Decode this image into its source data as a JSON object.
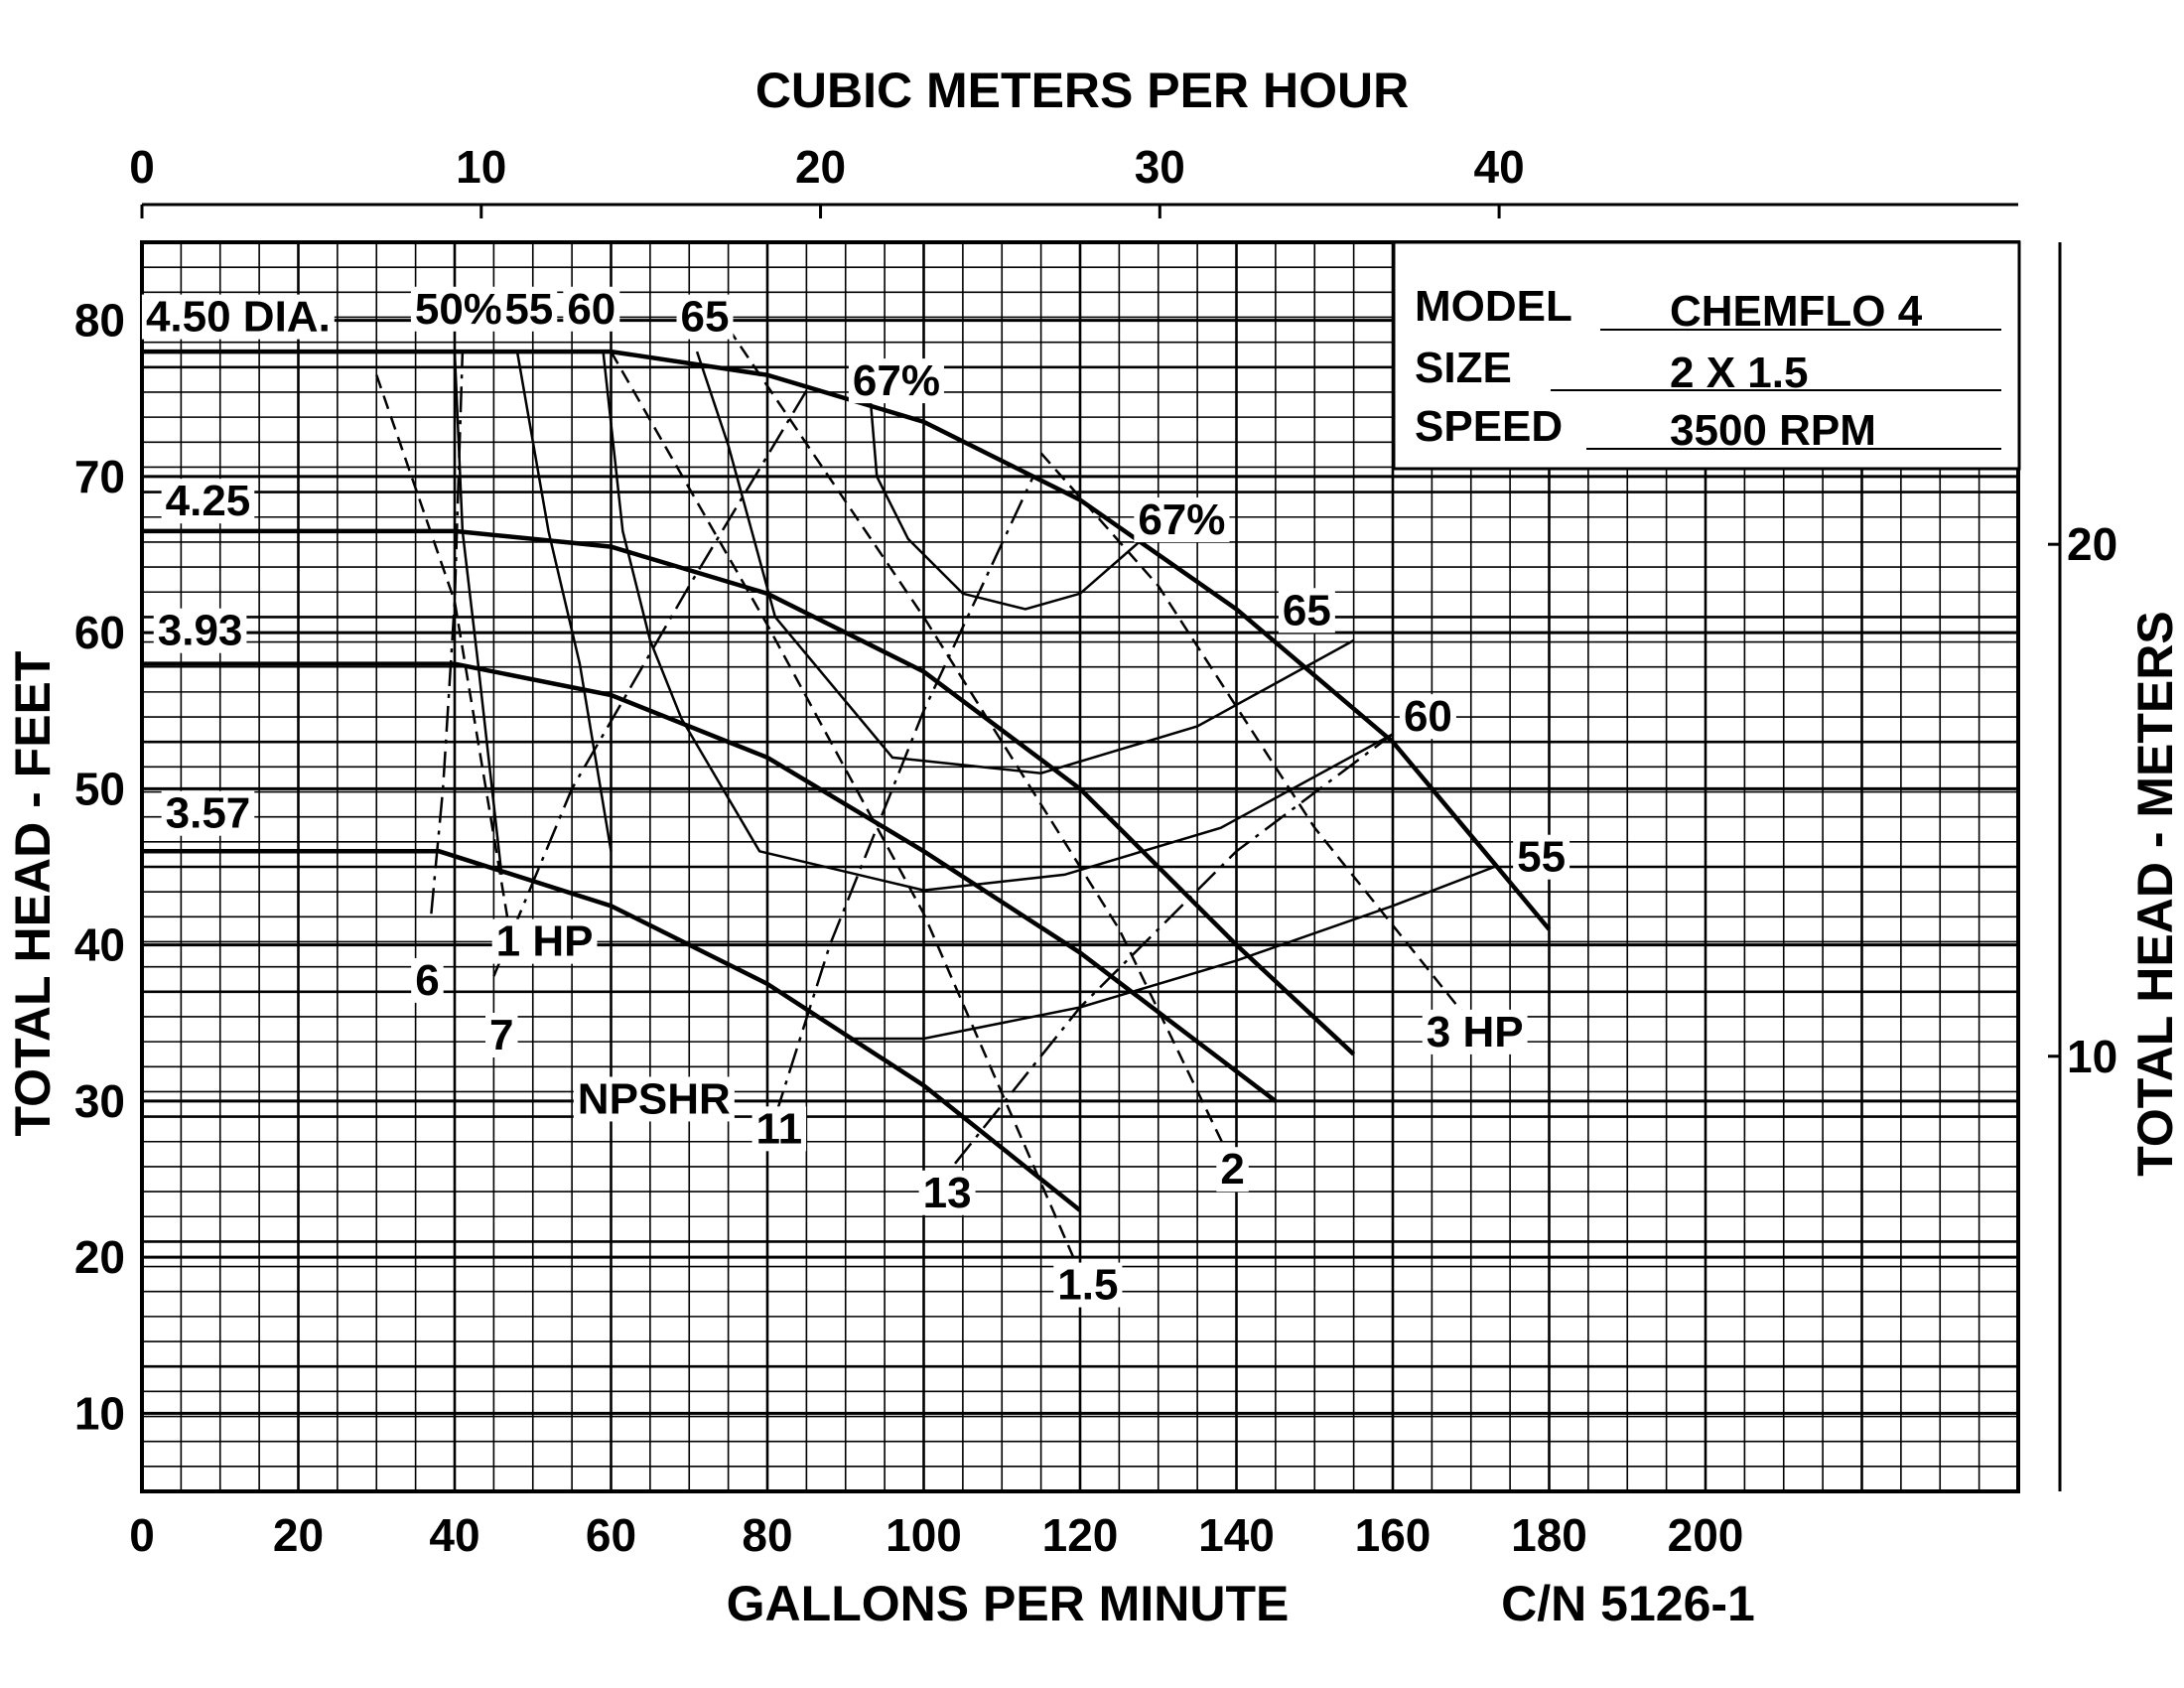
{
  "chart_data": {
    "type": "line",
    "title": "",
    "top_axis": {
      "label": "CUBIC METERS PER HOUR",
      "ticks": [
        0,
        10,
        20,
        30,
        40
      ],
      "range": [
        0,
        55.3
      ]
    },
    "bottom_axis": {
      "label": "GALLONS PER MINUTE",
      "ticks": [
        0,
        20,
        40,
        60,
        80,
        100,
        120,
        140,
        160,
        180,
        200
      ],
      "range": [
        0,
        240
      ]
    },
    "left_axis": {
      "label": "TOTAL HEAD - FEET",
      "ticks": [
        10,
        20,
        30,
        40,
        50,
        60,
        70,
        80
      ],
      "range": [
        5,
        85
      ]
    },
    "right_axis": {
      "label": "TOTAL HEAD - METERS",
      "ticks": [
        10,
        20
      ],
      "range": [
        1.5,
        25.9
      ]
    },
    "grid": true,
    "catalog_number": "C/N 5126-1",
    "info_box": {
      "rows": [
        {
          "key": "MODEL",
          "value": "CHEMFLO 4"
        },
        {
          "key": "SIZE",
          "value": "2 X 1.5"
        },
        {
          "key": "SPEED",
          "value": "3500 RPM"
        }
      ]
    },
    "series": [
      {
        "name": "4.50 DIA.",
        "kind": "head",
        "x": [
          0,
          40,
          60,
          80,
          100,
          120,
          140,
          160,
          170,
          180
        ],
        "y": [
          78,
          78,
          78,
          76.5,
          73.5,
          68.5,
          61.5,
          53,
          47,
          41
        ]
      },
      {
        "name": "4.25",
        "kind": "head",
        "x": [
          0,
          40,
          60,
          80,
          100,
          120,
          140,
          155
        ],
        "y": [
          66.5,
          66.5,
          65.5,
          62.5,
          57.5,
          50,
          40,
          33
        ]
      },
      {
        "name": "3.93",
        "kind": "head",
        "x": [
          0,
          40,
          60,
          80,
          100,
          120,
          145
        ],
        "y": [
          58,
          58,
          56,
          52,
          46,
          39.5,
          30
        ]
      },
      {
        "name": "3.57",
        "kind": "head",
        "x": [
          0,
          38,
          60,
          80,
          100,
          120
        ],
        "y": [
          46,
          46,
          42.5,
          37.5,
          31,
          23
        ]
      }
    ],
    "efficiency_curves": [
      {
        "label": "50%",
        "x": [
          40,
          41,
          43,
          46
        ],
        "y": [
          78,
          66.5,
          58,
          44.5
        ]
      },
      {
        "label": "55",
        "x": [
          48,
          52,
          56,
          60
        ],
        "y": [
          78,
          66.5,
          58,
          46
        ]
      },
      {
        "label": "60",
        "x": [
          59,
          61.5,
          65,
          69,
          79,
          100,
          118,
          138,
          160
        ],
        "y": [
          78,
          66.5,
          59.5,
          54.5,
          46,
          43.5,
          44.5,
          47.5,
          53.5
        ]
      },
      {
        "label": "65",
        "x": [
          71,
          75,
          78,
          81,
          96,
          115,
          135,
          155
        ],
        "y": [
          78,
          72,
          66.5,
          61,
          52,
          51,
          54,
          59.5
        ]
      },
      {
        "label": "67%",
        "x": [
          93,
          94,
          98,
          105,
          113,
          120,
          128
        ],
        "y": [
          76,
          70,
          66,
          62.5,
          61.5,
          62.5,
          66
        ]
      },
      {
        "label": "55",
        "x": [
          91,
          100,
          120,
          140,
          160,
          173
        ],
        "y": [
          34,
          34,
          36,
          39,
          42.5,
          45
        ]
      }
    ],
    "efficiency_labels": [
      "50%",
      "55",
      "60",
      "65",
      "67%",
      "67%",
      "65",
      "60",
      "55"
    ],
    "horsepower_curves": [
      {
        "label": "1 HP",
        "x": [
          30,
          40,
          47
        ],
        "y": [
          76.5,
          62,
          41
        ]
      },
      {
        "label": "1.5",
        "x": [
          60,
          80,
          100,
          120
        ],
        "y": [
          78,
          60.5,
          42,
          19
        ]
      },
      {
        "label": "2",
        "x": [
          75,
          100,
          125,
          139
        ],
        "y": [
          79.5,
          61,
          41,
          26.5
        ]
      },
      {
        "label": "3 HP",
        "x": [
          115,
          130,
          150,
          170
        ],
        "y": [
          71.5,
          63,
          47.5,
          35
        ]
      }
    ],
    "npshr_curves": [
      {
        "label": "6",
        "x": [
          37,
          38.5,
          40,
          41
        ],
        "y": [
          42,
          50,
          62,
          78
        ]
      },
      {
        "label": "7",
        "x": [
          45,
          55,
          70,
          85
        ],
        "y": [
          38,
          50,
          63,
          75.5
        ]
      },
      {
        "label": "11",
        "x": [
          81,
          88,
          100,
          114
        ],
        "y": [
          29,
          40,
          55,
          70
        ]
      },
      {
        "label": "13",
        "x": [
          104,
          120,
          140,
          160
        ],
        "y": [
          26,
          36,
          46,
          53.5
        ]
      }
    ],
    "annotations": [
      "NPSHR"
    ]
  }
}
